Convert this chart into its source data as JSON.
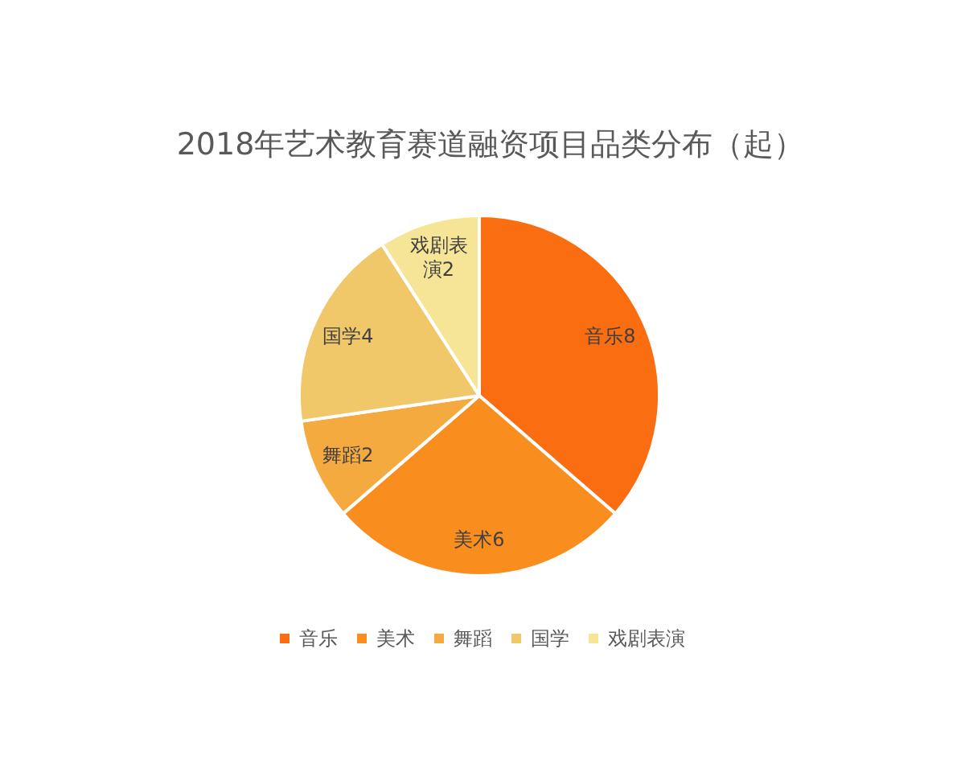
{
  "chart_data": {
    "type": "pie",
    "title": "2018年艺术教育赛道融资项目品类分布（起）",
    "categories": [
      "音乐",
      "美术",
      "舞蹈",
      "国学",
      "戏剧表演"
    ],
    "values": [
      8,
      6,
      2,
      4,
      2
    ],
    "colors": [
      "#fa6e11",
      "#f98e1f",
      "#f5aa40",
      "#f0c86a",
      "#f7e597"
    ],
    "value_labels": [
      "音乐8",
      "美术6",
      "舞蹈2",
      "国学4",
      "戏剧表演2"
    ],
    "legend": "bottom"
  }
}
